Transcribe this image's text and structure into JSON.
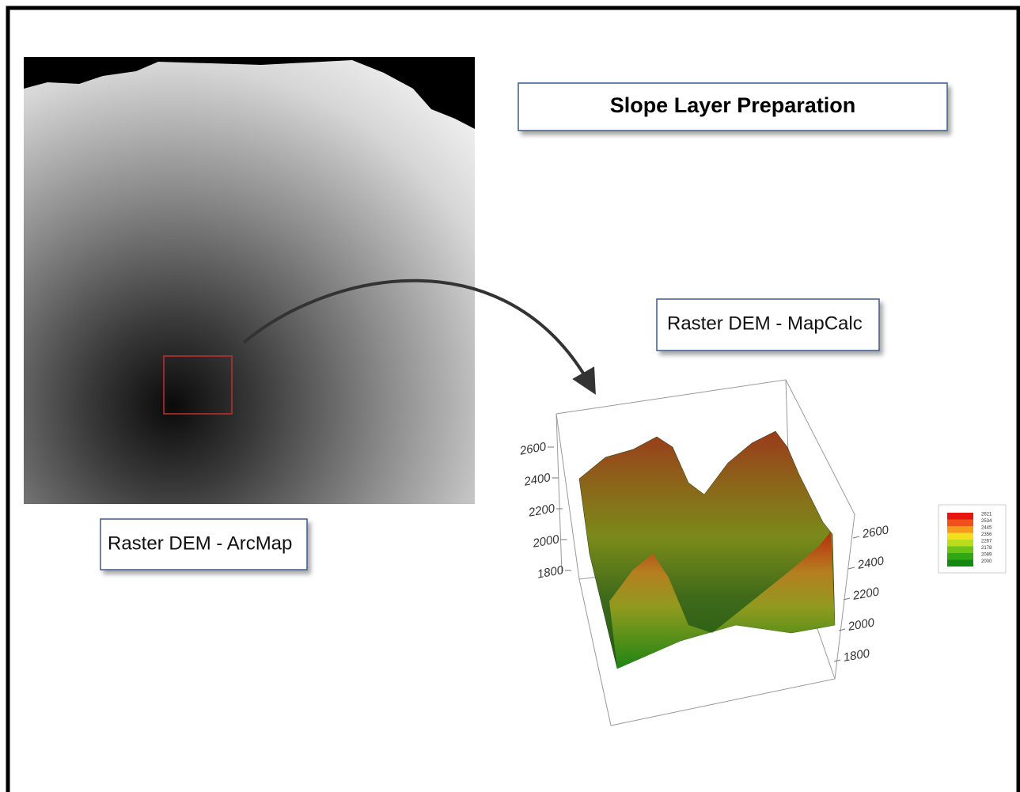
{
  "title": "Slope Layer Preparation",
  "labels": {
    "arcmap": "Raster DEM - ArcMap",
    "mapcalc": "Raster DEM - MapCalc"
  },
  "surface_plot": {
    "left_axis_ticks": [
      "2600",
      "2400",
      "2200",
      "2000",
      "1800"
    ],
    "right_axis_ticks": [
      "2600",
      "2400",
      "2200",
      "2000",
      "1800"
    ],
    "legend": [
      "2621",
      "2534",
      "2445",
      "2356",
      "2267",
      "2178",
      "2089",
      "2000"
    ]
  }
}
